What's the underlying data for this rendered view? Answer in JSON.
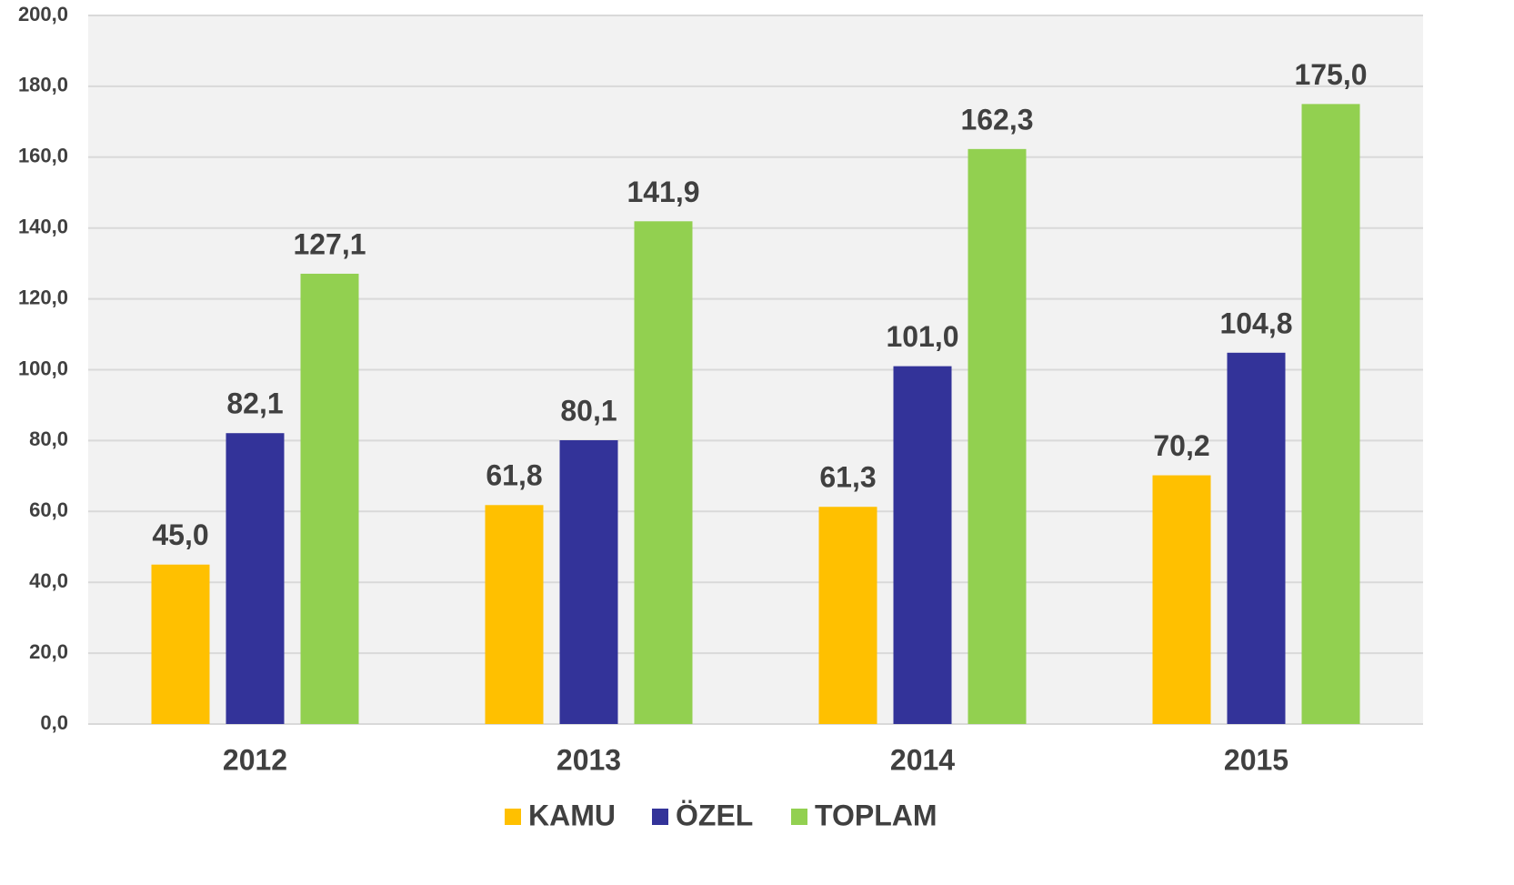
{
  "chart_data": {
    "type": "bar",
    "categories": [
      "2012",
      "2013",
      "2014",
      "2015"
    ],
    "series": [
      {
        "name": "KAMU",
        "color": "#ffc000",
        "values": [
          45.0,
          61.8,
          61.3,
          70.2
        ],
        "value_labels": [
          "45,0",
          "61,8",
          "61,3",
          "70,2"
        ]
      },
      {
        "name": "ÖZEL",
        "color": "#333399",
        "values": [
          82.1,
          80.1,
          101.0,
          104.8
        ],
        "value_labels": [
          "82,1",
          "80,1",
          "101,0",
          "104,8"
        ]
      },
      {
        "name": "TOPLAM",
        "color": "#92d050",
        "values": [
          127.1,
          141.9,
          162.3,
          175.0
        ],
        "value_labels": [
          "127,1",
          "141,9",
          "162,3",
          "175,0"
        ]
      }
    ],
    "ylim": [
      0,
      200
    ],
    "yticks": [
      {
        "value": 0,
        "label": "0,0"
      },
      {
        "value": 20,
        "label": "20,0"
      },
      {
        "value": 40,
        "label": "40,0"
      },
      {
        "value": 60,
        "label": "60,0"
      },
      {
        "value": 80,
        "label": "80,0"
      },
      {
        "value": 100,
        "label": "100,0"
      },
      {
        "value": 120,
        "label": "120,0"
      },
      {
        "value": 140,
        "label": "140,0"
      },
      {
        "value": 160,
        "label": "160,0"
      },
      {
        "value": 180,
        "label": "180,0"
      },
      {
        "value": 200,
        "label": "200,0"
      }
    ],
    "grid": true,
    "legend": "bottom"
  }
}
